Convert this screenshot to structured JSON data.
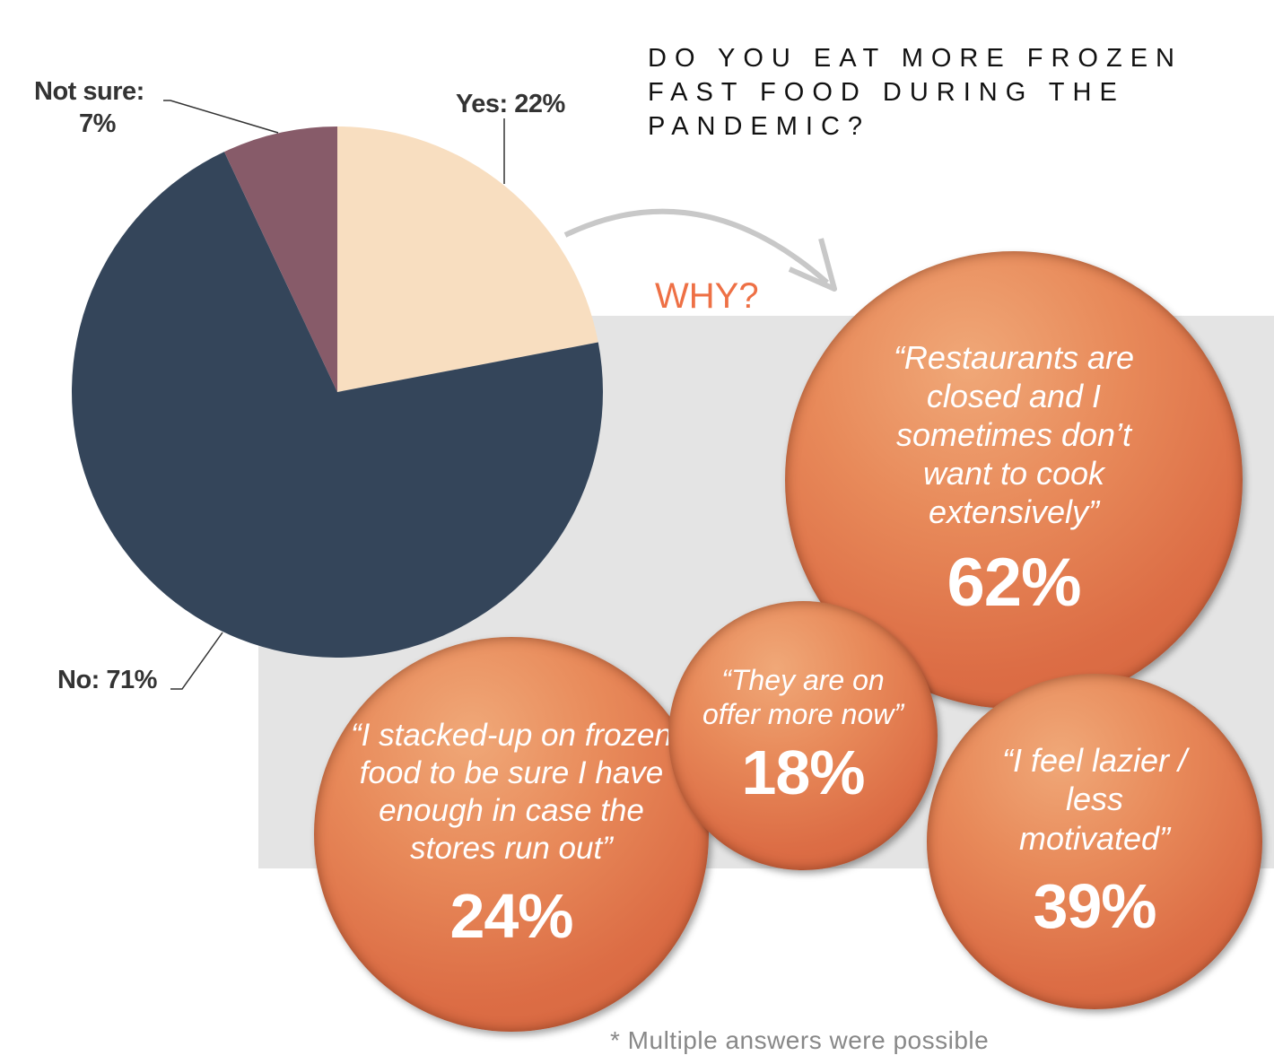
{
  "title": "DO YOU EAT MORE FROZEN FAST FOOD DURING THE PANDEMIC?",
  "why": "WHY?",
  "note": "* Multiple answers were possible",
  "chart_data": {
    "type": "pie",
    "start": "top, clockwise",
    "slices": [
      {
        "label": "Yes: 22%",
        "value": 22,
        "color": "#F8DEC0"
      },
      {
        "label": "No: 71%",
        "value": 71,
        "color": "#34455A"
      },
      {
        "label": "Not sure: 7%",
        "value": 7,
        "color": "#875B69"
      }
    ]
  },
  "labels": {
    "yes": "Yes: 22%",
    "no": "No: 71%",
    "notsure1": "Not sure:",
    "notsure2": "7%"
  },
  "reasons": [
    {
      "quote": "“Restaurants are closed and I sometimes don’t want to cook extensively”",
      "pct": "62%",
      "value": 62
    },
    {
      "quote": "“They are on offer more now”",
      "pct": "18%",
      "value": 18
    },
    {
      "quote": "“I stacked-up on frozen food to be sure I have enough in case the stores run out”",
      "pct": "24%",
      "value": 24
    },
    {
      "quote": "“I feel lazier / less motivated”",
      "pct": "39%",
      "value": 39
    }
  ],
  "colors": {
    "accent": "#EE7045",
    "band": "#E4E4E4"
  }
}
